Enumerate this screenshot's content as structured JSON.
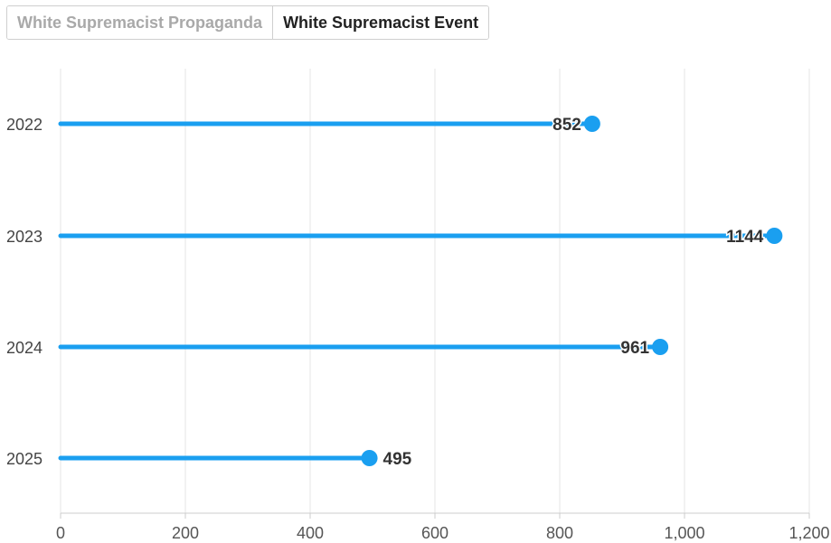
{
  "tabs": [
    {
      "label": "White Supremacist Propaganda",
      "active": false
    },
    {
      "label": "White Supremacist Event",
      "active": true
    }
  ],
  "chart_data": {
    "type": "bar",
    "orientation": "horizontal",
    "style": "lollipop",
    "categories": [
      "2022",
      "2023",
      "2024",
      "2025"
    ],
    "values": [
      852,
      1144,
      961,
      495
    ],
    "data_labels": [
      "852",
      "1144",
      "961",
      "495"
    ],
    "x_ticks": [
      "0",
      "200",
      "400",
      "600",
      "800",
      "1,000",
      "1,200"
    ],
    "xlim": [
      0,
      1200
    ],
    "grid": true,
    "legend": "none",
    "color": "#1a9ff0"
  }
}
